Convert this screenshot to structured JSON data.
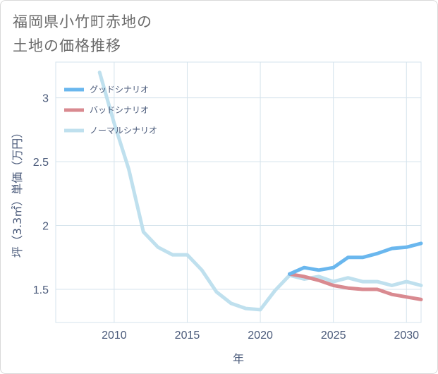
{
  "page": {
    "title_line1": "福岡県小竹町赤地の",
    "title_line2": "土地の価格推移"
  },
  "chart_data": {
    "type": "line",
    "xlabel": "年",
    "ylabel": "坪（3.3㎡）単価（万円）",
    "xlim": [
      2006,
      2031
    ],
    "ylim": [
      1.24,
      3.28
    ],
    "x_ticks": [
      2010,
      2015,
      2020,
      2025,
      2030
    ],
    "y_ticks": [
      1.5,
      2,
      2.5,
      3
    ],
    "y_tick_labels": [
      "1.5",
      "2",
      "2.5",
      "3"
    ],
    "grid": true,
    "legend_position": "top-left",
    "series": [
      {
        "name": "グッドシナリオ",
        "color": "#6ab7ee",
        "points": [
          [
            2022,
            1.62
          ],
          [
            2023,
            1.67
          ],
          [
            2024,
            1.65
          ],
          [
            2025,
            1.67
          ],
          [
            2026,
            1.75
          ],
          [
            2027,
            1.75
          ],
          [
            2028,
            1.78
          ],
          [
            2029,
            1.82
          ],
          [
            2030,
            1.83
          ],
          [
            2031,
            1.86
          ]
        ]
      },
      {
        "name": "バッドシナリオ",
        "color": "#d98a90",
        "points": [
          [
            2022,
            1.62
          ],
          [
            2023,
            1.6
          ],
          [
            2024,
            1.57
          ],
          [
            2025,
            1.53
          ],
          [
            2026,
            1.51
          ],
          [
            2027,
            1.5
          ],
          [
            2028,
            1.5
          ],
          [
            2029,
            1.46
          ],
          [
            2030,
            1.44
          ],
          [
            2031,
            1.42
          ]
        ]
      },
      {
        "name": "ノーマルシナリオ",
        "color": "#bfe0ee",
        "points": [
          [
            2009,
            3.2
          ],
          [
            2010,
            2.8
          ],
          [
            2011,
            2.44
          ],
          [
            2012,
            1.95
          ],
          [
            2013,
            1.83
          ],
          [
            2014,
            1.77
          ],
          [
            2015,
            1.77
          ],
          [
            2016,
            1.65
          ],
          [
            2017,
            1.48
          ],
          [
            2018,
            1.39
          ],
          [
            2019,
            1.35
          ],
          [
            2020,
            1.34
          ],
          [
            2021,
            1.49
          ],
          [
            2022,
            1.61
          ],
          [
            2023,
            1.58
          ],
          [
            2024,
            1.6
          ],
          [
            2025,
            1.56
          ],
          [
            2026,
            1.59
          ],
          [
            2027,
            1.56
          ],
          [
            2028,
            1.56
          ],
          [
            2029,
            1.53
          ],
          [
            2030,
            1.56
          ],
          [
            2031,
            1.53
          ]
        ]
      }
    ]
  }
}
